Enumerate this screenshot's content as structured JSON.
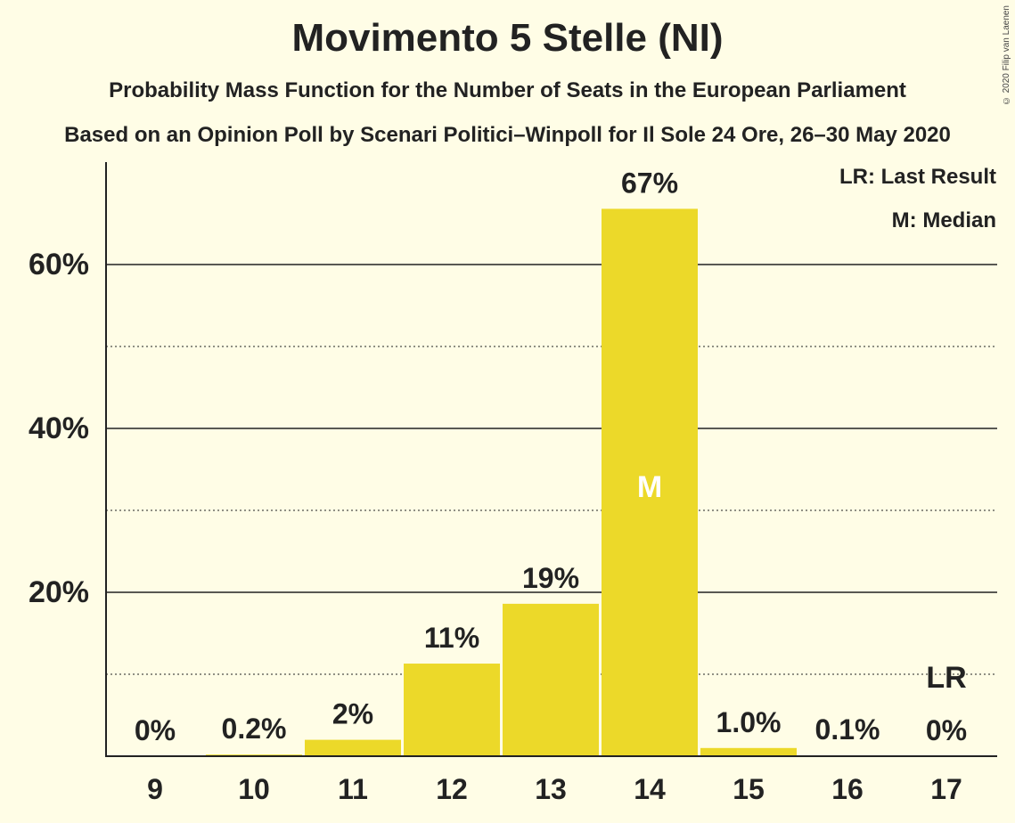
{
  "title": "Movimento 5 Stelle (NI)",
  "subtitle": "Probability Mass Function for the Number of Seats in the European Parliament",
  "subtitle2": "Based on an Opinion Poll by Scenari Politici–Winpoll for Il Sole 24 Ore, 26–30 May 2020",
  "copyright": "© 2020 Filip van Laenen",
  "legend": {
    "last_result": "LR: Last Result",
    "median": "M: Median"
  },
  "colors": {
    "bar": "#ecd929",
    "background": "#fffde6",
    "text": "#222222"
  },
  "chart_data": {
    "type": "bar",
    "categories": [
      "9",
      "10",
      "11",
      "12",
      "13",
      "14",
      "15",
      "16",
      "17"
    ],
    "values": [
      0,
      0.2,
      2,
      11.3,
      18.6,
      66.8,
      1.0,
      0.1,
      0
    ],
    "value_labels": [
      "0%",
      "0.2%",
      "2%",
      "11%",
      "19%",
      "67%",
      "1.0%",
      "0.1%",
      "0%"
    ],
    "y_tick_labels": [
      "20%",
      "40%",
      "60%"
    ],
    "y_ticks": [
      20,
      40,
      60
    ],
    "y_minor_ticks": [
      10,
      30,
      50
    ],
    "ylim": [
      0,
      72.5
    ],
    "median_category": "14",
    "median_marker": "M",
    "last_result_category": "17",
    "last_result_marker": "LR",
    "grid": true
  }
}
